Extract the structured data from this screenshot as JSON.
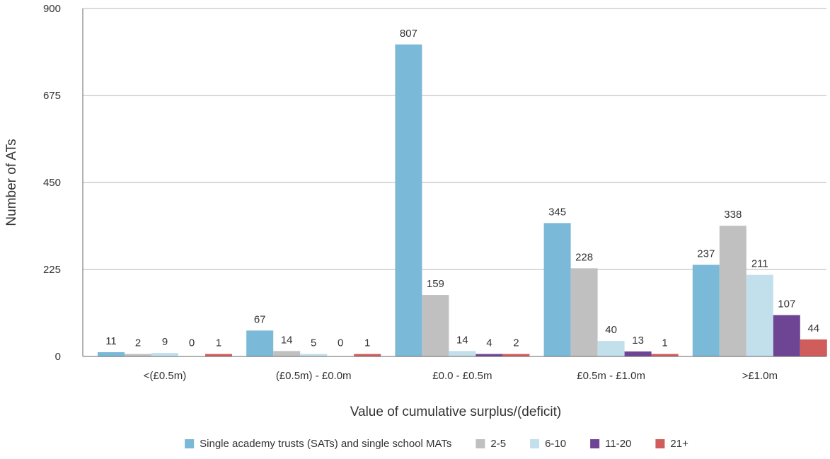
{
  "chart_data": {
    "type": "bar",
    "title": "",
    "xlabel": "Value of cumulative surplus/(deficit)",
    "ylabel": "Number of ATs",
    "ylim": [
      0,
      900
    ],
    "yticks": [
      "0",
      "225",
      "450",
      "675",
      "900"
    ],
    "ytick_values": [
      0,
      225,
      450,
      675,
      900
    ],
    "grid": true,
    "legend_position": "bottom",
    "categories": [
      "<(£0.5m)",
      "(£0.5m) - £0.0m",
      "£0.0 - £0.5m",
      "£0.5m - £1.0m",
      ">£1.0m"
    ],
    "series": [
      {
        "name": "Single academy trusts (SATs) and single school MATs",
        "color": "#7ab9d8",
        "values": [
          11,
          67,
          807,
          345,
          237
        ]
      },
      {
        "name": "2-5",
        "color": "#c0c0c0",
        "values": [
          2,
          14,
          159,
          228,
          338
        ]
      },
      {
        "name": "6-10",
        "color": "#c2dfec",
        "values": [
          9,
          5,
          14,
          40,
          211
        ]
      },
      {
        "name": "11-20",
        "color": "#6e4595",
        "values": [
          0,
          0,
          4,
          13,
          107
        ]
      },
      {
        "name": "21+",
        "color": "#d15c5c",
        "values": [
          1,
          1,
          2,
          1,
          44
        ]
      }
    ]
  }
}
